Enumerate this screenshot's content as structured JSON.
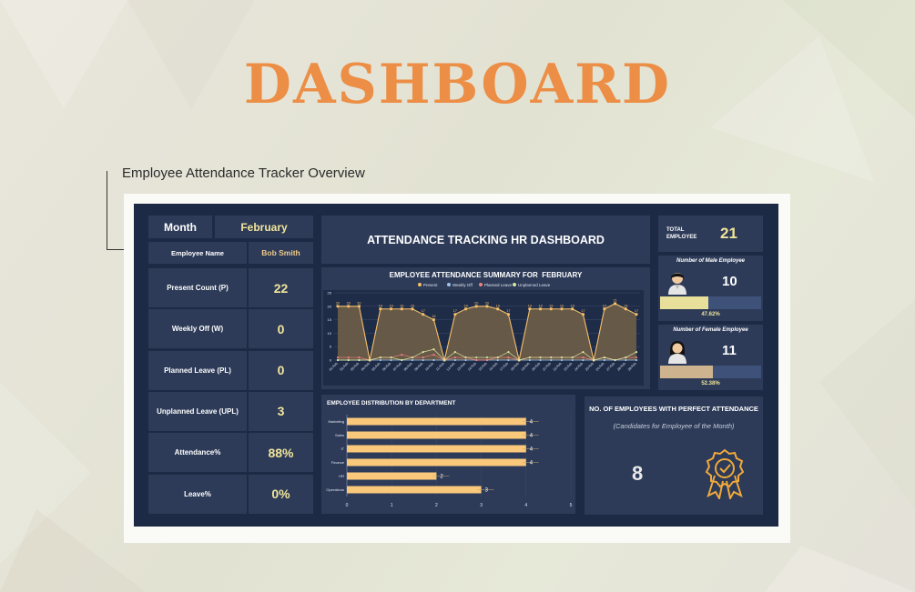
{
  "page": {
    "title": "DASHBOARD",
    "subtitle": "Employee Attendance Tracker Overview"
  },
  "filters": {
    "month_label": "Month",
    "month_value": "February",
    "employee_label": "Employee Name",
    "employee_value": "Bob Smith"
  },
  "metrics": [
    {
      "label": "Present Count (P)",
      "value": "22"
    },
    {
      "label": "Weekly Off (W)",
      "value": "0"
    },
    {
      "label": "Planned Leave (PL)",
      "value": "0"
    },
    {
      "label": "Unplanned Leave (UPL)",
      "value": "3"
    },
    {
      "label": "Attendance%",
      "value": "88%"
    },
    {
      "label": "Leave%",
      "value": "0%"
    }
  ],
  "header": {
    "title": "ATTENDANCE TRACKING HR DASHBOARD"
  },
  "totals": {
    "total_label": "TOTAL EMPLOYEE",
    "total_value": "21",
    "male_label": "Number of Male Employee",
    "male_value": "10",
    "male_pct": "47.62%",
    "male_fraction": 0.4762,
    "female_label": "Number of Female Employee",
    "female_value": "11",
    "female_pct": "52.38%",
    "female_fraction": 0.5238
  },
  "perfect": {
    "title": "NO. OF EMPLOYEES WITH PERFECT ATTENDANCE",
    "subtitle": "(Candidates for Employee of the Month)",
    "value": "8"
  },
  "colors": {
    "accent": "#ec8e45",
    "present": "#f5c06b",
    "weekly_off": "#9dc3e6",
    "planned_leave": "#f08080",
    "unplanned_leave": "#d8e8a0",
    "bar": "#f9c87a",
    "male_bar": "#e8e09a",
    "female_bar": "#cdb48f"
  },
  "icons": {
    "male": "male-avatar-icon",
    "female": "female-avatar-icon",
    "badge": "award-badge-icon"
  },
  "chart_data": [
    {
      "type": "area",
      "title": "EMPLOYEE ATTENDANCE SUMMARY FOR  FEBRUARY",
      "legend_position": "top",
      "grid": true,
      "ylim": [
        0,
        25
      ],
      "yticks": [
        "0",
        "5",
        "10",
        "15",
        "20",
        "25"
      ],
      "x": [
        "01-Feb",
        "02-Feb",
        "03-Feb",
        "04-Feb",
        "05-Feb",
        "06-Feb",
        "07-Feb",
        "08-Feb",
        "09-Feb",
        "10-Feb",
        "11-Feb",
        "12-Feb",
        "13-Feb",
        "14-Feb",
        "15-Feb",
        "16-Feb",
        "17-Feb",
        "18-Feb",
        "19-Feb",
        "20-Feb",
        "21-Feb",
        "22-Feb",
        "23-Feb",
        "24-Feb",
        "25-Feb",
        "26-Feb",
        "27-Feb",
        "28-Feb",
        "29-Feb"
      ],
      "series": [
        {
          "name": "Present",
          "values": [
            20,
            20,
            20,
            0,
            19,
            19,
            19,
            19,
            17,
            15,
            0,
            17,
            19,
            20,
            20,
            19,
            17,
            0,
            19,
            19,
            19,
            19,
            19,
            17,
            0,
            19,
            21,
            19,
            17
          ]
        },
        {
          "name": "Weekly Off",
          "values": [
            0,
            0,
            0,
            0,
            0,
            0,
            0,
            0,
            0,
            0,
            0,
            0,
            0,
            0,
            0,
            0,
            0,
            0,
            0,
            0,
            0,
            0,
            0,
            0,
            0,
            0,
            0,
            0,
            0
          ]
        },
        {
          "name": "Planned Leave",
          "values": [
            1,
            1,
            1,
            0,
            1,
            1,
            2,
            1,
            1,
            2,
            0,
            1,
            1,
            0,
            0,
            1,
            1,
            0,
            1,
            1,
            1,
            1,
            1,
            1,
            0,
            1,
            0,
            1,
            1
          ]
        },
        {
          "name": "Unplanned Leave",
          "values": [
            0,
            0,
            0,
            0,
            1,
            1,
            0,
            1,
            3,
            4,
            0,
            3,
            1,
            1,
            1,
            1,
            3,
            0,
            1,
            1,
            1,
            1,
            1,
            3,
            0,
            1,
            0,
            1,
            3
          ]
        }
      ]
    },
    {
      "type": "bar",
      "orientation": "horizontal",
      "title": "EMPLOYEE DISTRIBUTION BY DEPARTMENT",
      "categories": [
        "Marketing",
        "Sales",
        "IT",
        "Finance",
        "HR",
        "Operations"
      ],
      "values": [
        4,
        4,
        4,
        4,
        2,
        3
      ],
      "xlim": [
        0,
        5
      ],
      "xticks": [
        "0",
        "1",
        "2",
        "3",
        "4",
        "5"
      ]
    }
  ]
}
